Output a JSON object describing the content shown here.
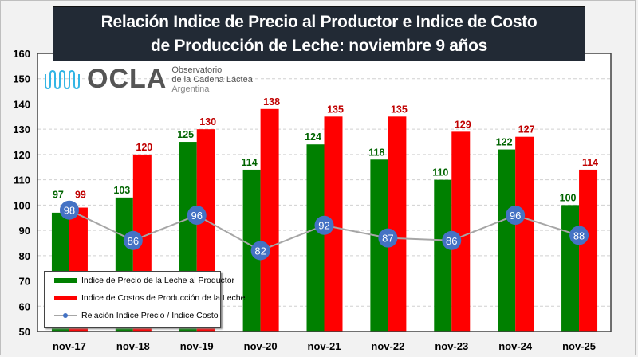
{
  "chart_data": {
    "type": "bar",
    "title": "Relación Indice de Precio al Productor e Indice de Costo de Producción de Leche:  noviembre 9 años",
    "title_lines": [
      "Relación Indice de Precio al Productor e Indice de Costo",
      "de Producción de Leche:  noviembre 9 años"
    ],
    "categories": [
      "nov-17",
      "nov-18",
      "nov-19",
      "nov-20",
      "nov-21",
      "nov-22",
      "nov-23",
      "nov-24",
      "nov-25"
    ],
    "series": [
      {
        "name": "Indice de Precio de la Leche al Productor",
        "type": "bar",
        "color": "#008000",
        "label_color": "#006400",
        "values": [
          97,
          103,
          125,
          114,
          124,
          118,
          110,
          122,
          100
        ]
      },
      {
        "name": "Indice de Costos de Producción de la Leche",
        "type": "bar",
        "color": "#ff0000",
        "label_color": "#c00000",
        "values": [
          99,
          120,
          130,
          138,
          135,
          135,
          129,
          127,
          114
        ]
      },
      {
        "name": "Relación Indice Precio / Indice Costo",
        "type": "line",
        "color": "#a6a6a6",
        "marker_color": "#4472c4",
        "values": [
          98,
          86,
          96,
          82,
          92,
          87,
          86,
          96,
          88
        ]
      }
    ],
    "ylim": [
      50,
      160
    ],
    "yticks": [
      50,
      60,
      70,
      80,
      90,
      100,
      110,
      120,
      130,
      140,
      150,
      160
    ],
    "grid": true,
    "legend": "bottom-left"
  },
  "logo": {
    "word": "OCLA",
    "line1": "Observatorio",
    "line2": "de la Cadena Láctea",
    "line3": "Argentina"
  }
}
